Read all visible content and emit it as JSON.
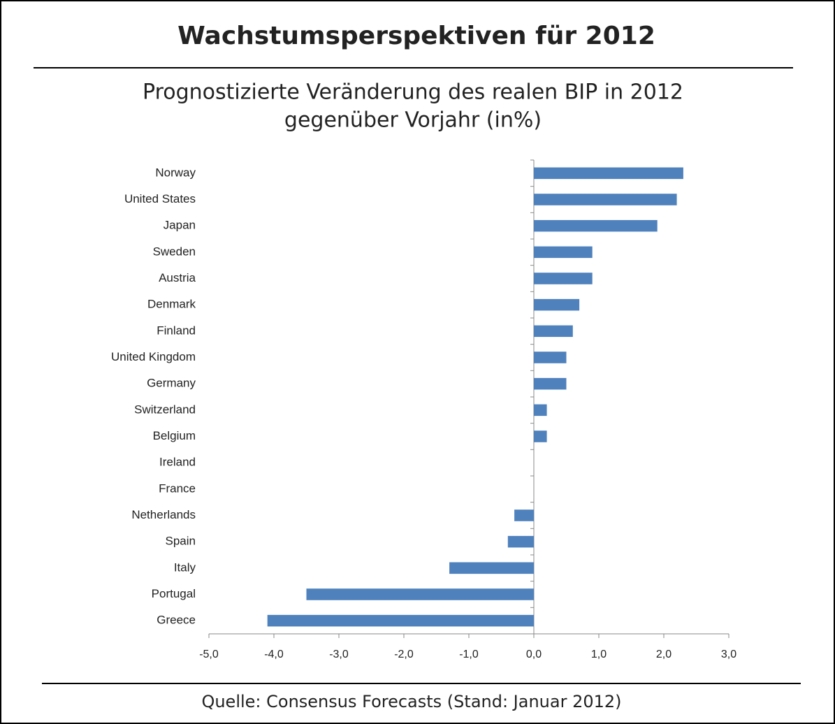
{
  "chart_data": {
    "type": "hbar",
    "title": "Wachstumsperspektiven für 2012",
    "subtitle": [
      "Prognostizierte Veränderung des realen BIP in 2012",
      "gegenüber Vorjahr (in%)"
    ],
    "source": "Quelle: Consensus Forecasts (Stand: Januar 2012)",
    "categories": [
      "Norway",
      "United States",
      "Japan",
      "Sweden",
      "Austria",
      "Denmark",
      "Finland",
      "United Kingdom",
      "Germany",
      "Switzerland",
      "Belgium",
      "Ireland",
      "France",
      "Netherlands",
      "Spain",
      "Italy",
      "Portugal",
      "Greece"
    ],
    "values": [
      2.3,
      2.2,
      1.9,
      0.9,
      0.9,
      0.7,
      0.6,
      0.5,
      0.5,
      0.2,
      0.2,
      0,
      0,
      -0.3,
      -0.4,
      -1.3,
      -3.5,
      -4.1
    ],
    "color": "#4f81bd",
    "xlim": [
      -5,
      3
    ],
    "xticks": [
      {
        "value": -5,
        "label": "-5,0"
      },
      {
        "value": -4,
        "label": "-4,0"
      },
      {
        "value": -3,
        "label": "-3,0"
      },
      {
        "value": -2,
        "label": "-2,0"
      },
      {
        "value": -1,
        "label": "-1,0"
      },
      {
        "value": 0,
        "label": "0,0"
      },
      {
        "value": 1,
        "label": "1,0"
      },
      {
        "value": 2,
        "label": "2,0"
      },
      {
        "value": 3,
        "label": "3,0"
      }
    ],
    "grid": false
  }
}
